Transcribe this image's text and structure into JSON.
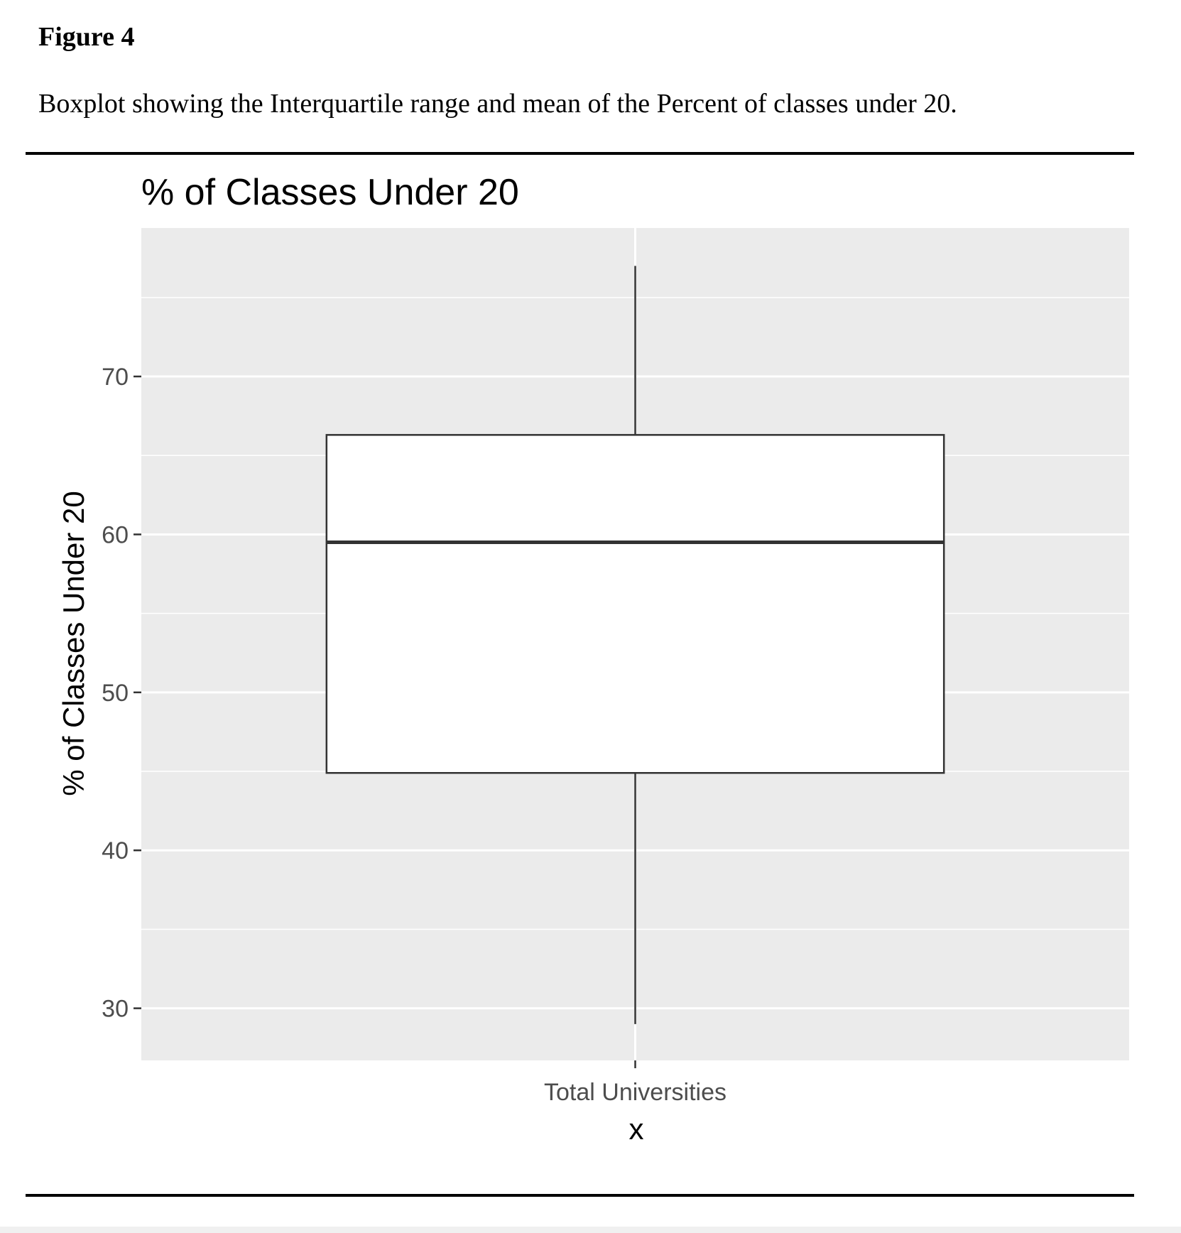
{
  "figure": {
    "label": "Figure 4",
    "caption": "Boxplot showing the Interquartile range and mean of the Percent of classes under 20."
  },
  "chart_data": {
    "type": "boxplot",
    "title": "% of Classes Under 20",
    "xlabel": "x",
    "ylabel": "% of Classes Under 20",
    "categories": [
      "Total Universities"
    ],
    "boxes": [
      {
        "category": "Total Universities",
        "whisker_low": 29,
        "q1": 44.9,
        "median": 59.5,
        "q3": 66.3,
        "whisker_high": 77
      }
    ],
    "y_ticks": [
      30,
      40,
      50,
      60,
      70
    ],
    "ylim": [
      26.7,
      79.4
    ],
    "grid": true,
    "legend": "none",
    "colors": {
      "panel": "#ebebeb",
      "grid": "#ffffff",
      "box_fill": "#ffffff",
      "box_line": "#333333",
      "tick_text": "#4d4d4d"
    }
  }
}
